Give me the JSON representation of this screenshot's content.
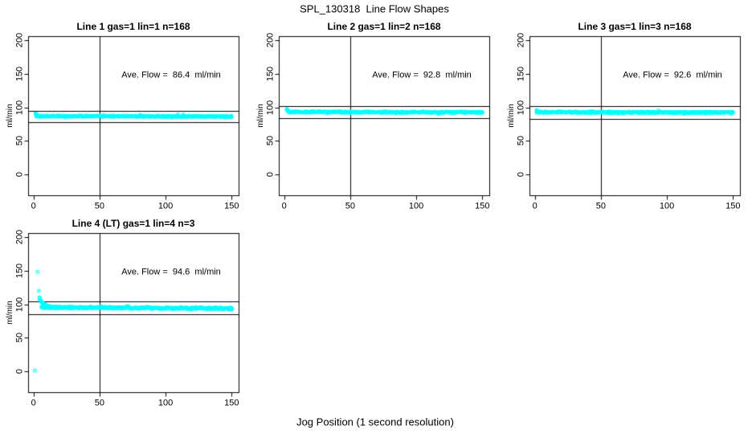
{
  "figure": {
    "title": "SPL_130318  Line Flow Shapes",
    "xlabel": "Jog Position (1 second resolution)",
    "background_color": "#FFFFFF",
    "axis_color": "#000000",
    "point_color": "#00FFFF"
  },
  "chart_data": [
    {
      "type": "scatter",
      "title": "Line 1 gas=1 lin=1 n=168",
      "n_cycles": 168,
      "annotation": "Ave. Flow =  86.4  ml/min",
      "ave_flow_ml_min": 86.4,
      "ylabel": "ml/min",
      "xlim": [
        -4.1,
        155.3
      ],
      "ylim": [
        -31,
        206
      ],
      "xticks": [
        0,
        50,
        100,
        150
      ],
      "yticks": [
        0,
        50,
        100,
        150,
        200
      ],
      "vline_x": 50,
      "hlines": [
        95.0,
        77.8
      ],
      "grid": false,
      "series": {
        "name": "flow-points",
        "marker": "open-circle",
        "color": "#00FFFF",
        "start_transient": [
          [
            1.5,
            90.5
          ],
          [
            2,
            89.2
          ],
          [
            2.5,
            88.4
          ],
          [
            3,
            88.0
          ],
          [
            3.5,
            87.5
          ]
        ],
        "band": {
          "x_start": 2,
          "x_end": 150.5,
          "y_start": 86.9,
          "y_end": 86.3,
          "spread": 1.2
        },
        "outliers": []
      }
    },
    {
      "type": "scatter",
      "title": "Line 2 gas=1 lin=2 n=168",
      "n_cycles": 168,
      "annotation": "Ave. Flow =  92.8  ml/min",
      "ave_flow_ml_min": 92.8,
      "ylabel": "ml/min",
      "xlim": [
        -4.1,
        155.3
      ],
      "ylim": [
        -31,
        206
      ],
      "xticks": [
        0,
        50,
        100,
        150
      ],
      "yticks": [
        0,
        50,
        100,
        150,
        200
      ],
      "vline_x": 50,
      "hlines": [
        102.1,
        83.5
      ],
      "grid": false,
      "series": {
        "name": "flow-points",
        "marker": "open-circle",
        "color": "#00FFFF",
        "start_transient": [
          [
            2,
            97.0
          ],
          [
            2.5,
            95.2
          ],
          [
            3,
            94.1
          ]
        ],
        "band": {
          "x_start": 3,
          "x_end": 150.5,
          "y_start": 93.1,
          "y_end": 92.5,
          "spread": 1.3
        },
        "outliers": []
      }
    },
    {
      "type": "scatter",
      "title": "Line 3 gas=1 lin=3 n=168",
      "n_cycles": 168,
      "annotation": "Ave. Flow =  92.6  ml/min",
      "ave_flow_ml_min": 92.6,
      "ylabel": "ml/min",
      "xlim": [
        -4.1,
        155.3
      ],
      "ylim": [
        -31,
        206
      ],
      "xticks": [
        0,
        50,
        100,
        150
      ],
      "yticks": [
        0,
        50,
        100,
        150,
        200
      ],
      "vline_x": 50,
      "hlines": [
        101.9,
        83.3
      ],
      "grid": false,
      "series": {
        "name": "flow-points",
        "marker": "open-circle",
        "color": "#00FFFF",
        "start_transient": [
          [
            1.5,
            95.0
          ],
          [
            2,
            94.0
          ]
        ],
        "band": {
          "x_start": 1.5,
          "x_end": 150.5,
          "y_start": 92.8,
          "y_end": 92.3,
          "spread": 1.3
        },
        "outliers": []
      }
    },
    {
      "type": "scatter",
      "title": "Line 4 (LT) gas=1 lin=4 n=3",
      "n_cycles": 3,
      "annotation": "Ave. Flow =  94.6  ml/min",
      "ave_flow_ml_min": 94.6,
      "ylabel": "ml/min",
      "xlim": [
        -4.1,
        155.3
      ],
      "ylim": [
        -31,
        206
      ],
      "xticks": [
        0,
        50,
        100,
        150
      ],
      "yticks": [
        0,
        50,
        100,
        150,
        200
      ],
      "vline_x": 50,
      "hlines": [
        104.1,
        85.1
      ],
      "grid": false,
      "series": {
        "name": "flow-points",
        "marker": "open-circle",
        "color": "#00FFFF",
        "start_transient": [
          [
            4.5,
            110
          ],
          [
            5,
            107
          ],
          [
            5.5,
            105
          ],
          [
            6,
            103.5
          ],
          [
            7,
            101.5
          ],
          [
            8,
            100
          ],
          [
            9,
            99
          ],
          [
            10,
            98.2
          ],
          [
            11,
            97.5
          ],
          [
            12,
            97
          ],
          [
            13,
            96.6
          ],
          [
            14,
            96.3
          ],
          [
            16,
            95.8
          ],
          [
            18,
            95.4
          ],
          [
            20,
            95.2
          ]
        ],
        "band": {
          "x_start": 6,
          "x_end": 150.5,
          "y_start": 95.3,
          "y_end": 93.7,
          "spread": 1.7
        },
        "outliers": [
          [
            1,
            1
          ],
          [
            3,
            148
          ],
          [
            4,
            120
          ],
          [
            150,
            92.3
          ]
        ]
      }
    }
  ]
}
